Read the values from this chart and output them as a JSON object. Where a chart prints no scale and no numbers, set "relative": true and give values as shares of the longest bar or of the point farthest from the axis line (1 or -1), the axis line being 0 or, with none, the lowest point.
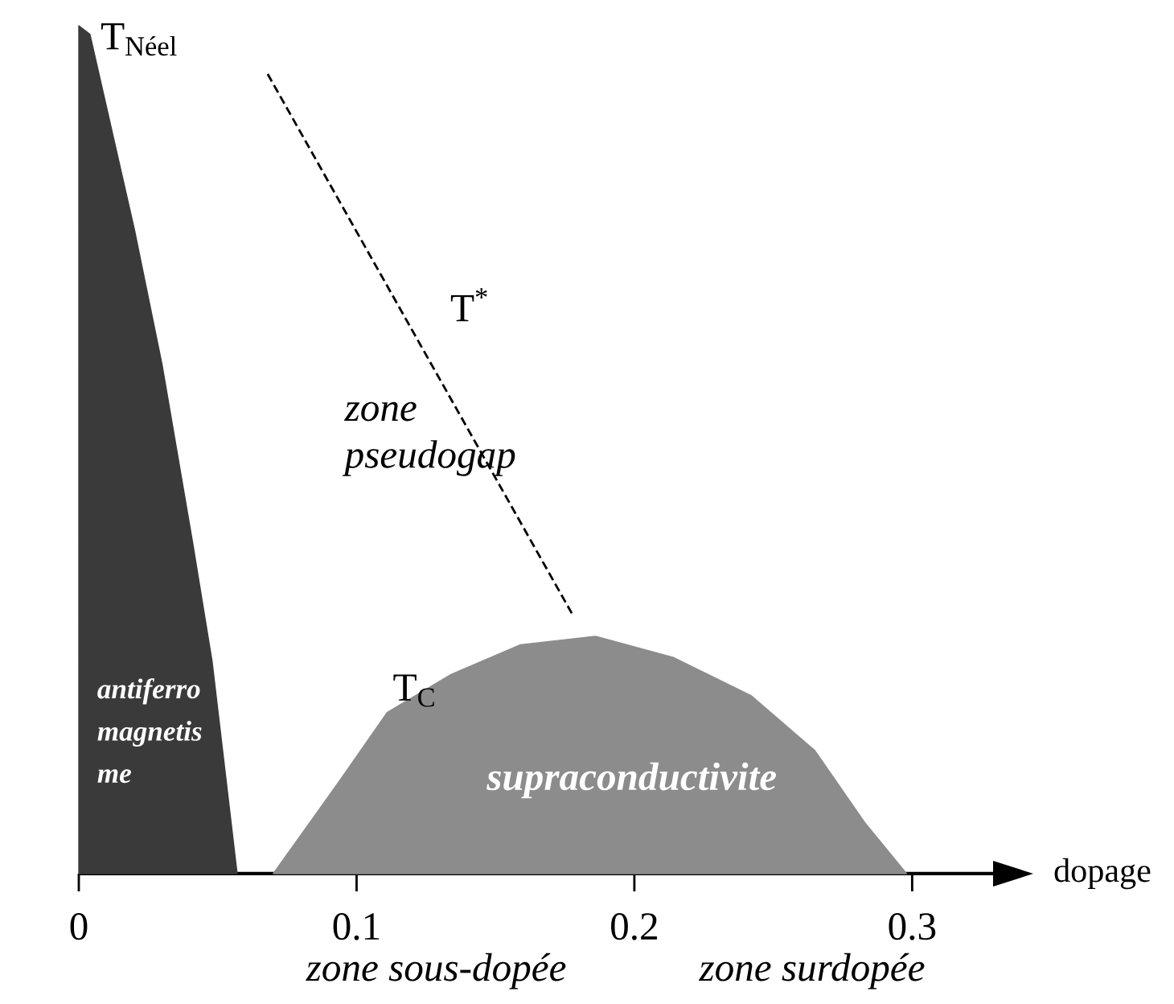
{
  "chart_data": {
    "type": "area",
    "relative": true,
    "xlabel": "dopage",
    "xlim": [
      0,
      0.33
    ],
    "xticks": [
      0,
      0.1,
      0.2,
      0.3
    ],
    "series": [
      {
        "name": "T$_{Néel}$",
        "color": "#3a3a3a",
        "x": [
          0,
          0,
          0.004,
          0.02,
          0.03,
          0.041,
          0.048,
          0.057
        ],
        "values": [
          0,
          1,
          0.99,
          0.76,
          0.6,
          0.39,
          0.25,
          0
        ]
      },
      {
        "name": "T$_{C}$",
        "color": "#8c8c8c",
        "x": [
          0.07,
          0.094,
          0.111,
          0.134,
          0.159,
          0.186,
          0.214,
          0.242,
          0.265,
          0.283,
          0.298
        ],
        "values": [
          0,
          0.11,
          0.19,
          0.235,
          0.27,
          0.28,
          0.255,
          0.21,
          0.145,
          0.06,
          0
        ]
      },
      {
        "name": "T$^{*}$",
        "type": "line",
        "line_style": "dashed",
        "color": "#000000",
        "x": [
          0.068,
          0.178
        ],
        "values": [
          0.943,
          0.304
        ]
      }
    ],
    "annotations": [
      "zone",
      "pseudogap",
      "antiferro",
      "magnetis",
      "me",
      "supraconductivite",
      "zone sous-dopée",
      "zone surdopée"
    ]
  }
}
